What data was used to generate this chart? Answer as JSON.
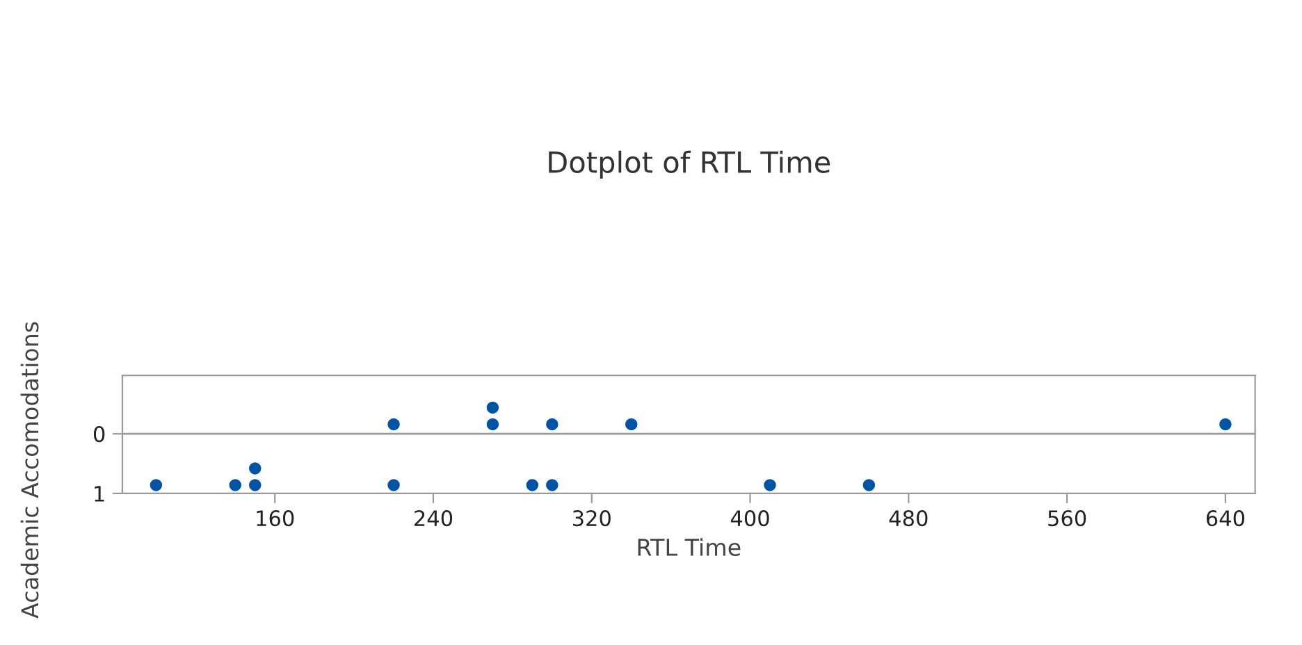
{
  "chart_data": {
    "type": "scatter",
    "title": "Dotplot of RTL Time",
    "xlabel": "RTL Time",
    "ylabel": "Academic Accomodations",
    "series": [
      {
        "color": "#0054a6",
        "x": [
          220,
          270,
          270,
          300,
          340,
          640
        ],
        "values": [
          -0.16,
          -0.16,
          -0.44,
          -0.16,
          -0.16,
          -0.16
        ]
      },
      {
        "color": "#0054a6",
        "x": [
          100,
          140,
          150,
          150,
          220,
          290,
          300,
          410,
          460
        ],
        "values": [
          0.86,
          0.86,
          0.86,
          0.58,
          0.86,
          0.86,
          0.86,
          0.86,
          0.86
        ]
      }
    ],
    "xlim": [
      83,
      655
    ],
    "xticks": [
      160,
      240,
      320,
      400,
      480,
      560,
      640
    ],
    "ylim": [
      1,
      -0.98
    ],
    "yticks": [
      0,
      1
    ],
    "ref_lines": [
      {
        "axis": "y",
        "value": 0,
        "color": "#999999"
      }
    ],
    "marker": "circle",
    "grid": false,
    "legend": false
  }
}
